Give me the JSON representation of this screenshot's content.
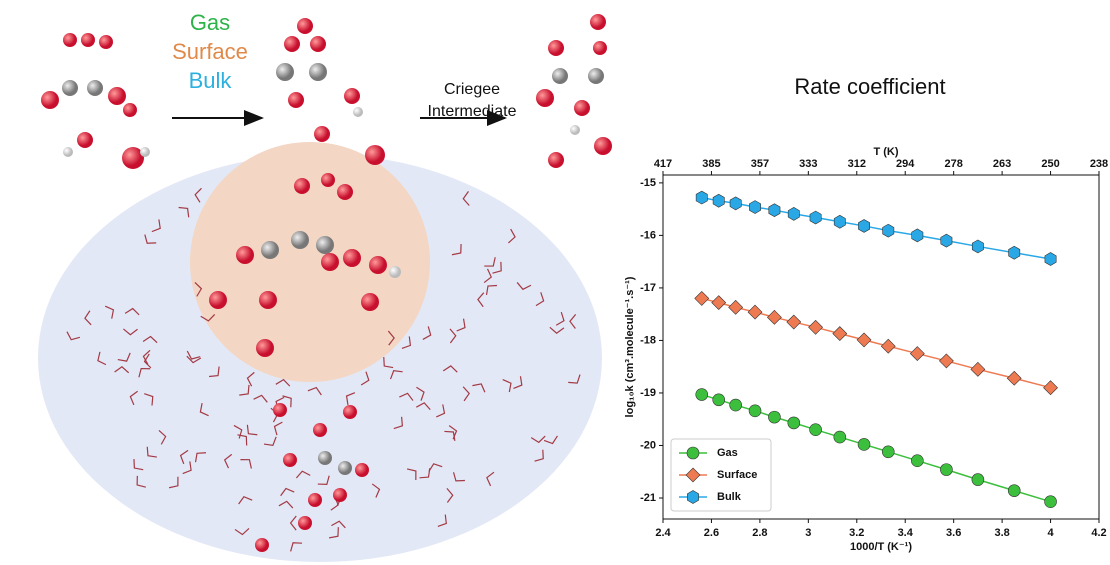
{
  "scheme": {
    "phases": [
      "Gas",
      "Surface",
      "Bulk"
    ],
    "step": [
      "Criegee",
      "Intermediate"
    ]
  },
  "chart_data": {
    "type": "line",
    "title": "Rate coefficient",
    "xlabel": "1000/T (K⁻¹)",
    "ylabel": "log₁₀k (cm³.molecule⁻¹.s⁻¹)",
    "x2label": "T (K)",
    "x": [
      2.56,
      2.63,
      2.7,
      2.78,
      2.86,
      2.94,
      3.03,
      3.13,
      3.23,
      3.33,
      3.45,
      3.57,
      3.7,
      3.85,
      4.0
    ],
    "series": [
      {
        "name": "Gas",
        "color": "#3cbf3c",
        "marker": "circle",
        "values": [
          -19.03,
          -19.13,
          -19.23,
          -19.34,
          -19.46,
          -19.57,
          -19.7,
          -19.84,
          -19.98,
          -20.12,
          -20.29,
          -20.46,
          -20.65,
          -20.86,
          -21.07
        ]
      },
      {
        "name": "Surface",
        "color": "#ee7a52",
        "marker": "diamond",
        "values": [
          -17.2,
          -17.28,
          -17.37,
          -17.46,
          -17.56,
          -17.65,
          -17.75,
          -17.87,
          -17.99,
          -18.11,
          -18.25,
          -18.39,
          -18.55,
          -18.72,
          -18.9
        ]
      },
      {
        "name": "Bulk",
        "color": "#2aa8e6",
        "marker": "hexagon",
        "values": [
          -15.28,
          -15.34,
          -15.39,
          -15.46,
          -15.52,
          -15.59,
          -15.66,
          -15.74,
          -15.82,
          -15.91,
          -16.0,
          -16.1,
          -16.21,
          -16.33,
          -16.45
        ]
      }
    ],
    "xlim": [
      2.4,
      4.2
    ],
    "xticks": [
      2.4,
      2.6,
      2.8,
      3.0,
      3.2,
      3.4,
      3.6,
      3.8,
      4.0,
      4.2
    ],
    "ylim": [
      -21.4,
      -14.85
    ],
    "yticks": [
      -21,
      -20,
      -19,
      -18,
      -17,
      -16,
      -15
    ],
    "x2ticks": [
      {
        "value": 2.4,
        "label": "417"
      },
      {
        "value": 2.6,
        "label": "385"
      },
      {
        "value": 2.8,
        "label": "357"
      },
      {
        "value": 3.0,
        "label": "333"
      },
      {
        "value": 3.2,
        "label": "312"
      },
      {
        "value": 3.4,
        "label": "294"
      },
      {
        "value": 3.6,
        "label": "278"
      },
      {
        "value": 3.8,
        "label": "263"
      },
      {
        "value": 4.0,
        "label": "250"
      },
      {
        "value": 4.2,
        "label": "238"
      }
    ],
    "legend": "lower left",
    "grid": false
  }
}
